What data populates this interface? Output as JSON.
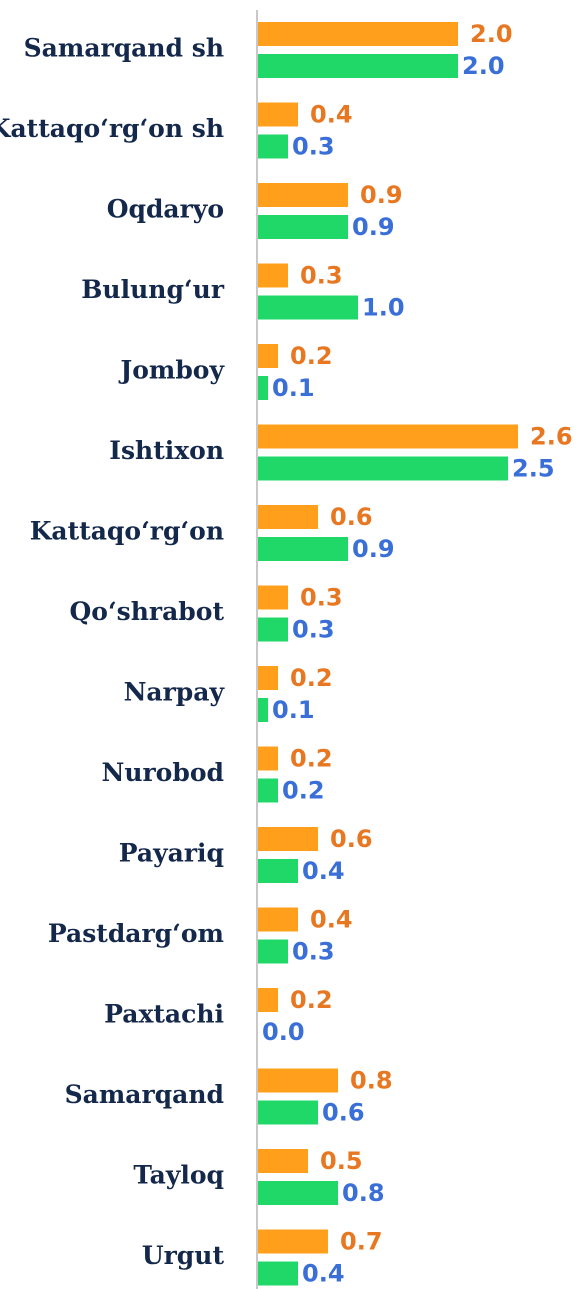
{
  "chart_data": {
    "type": "bar",
    "orientation": "horizontal",
    "categories": [
      "Samarqand sh",
      "Kattaqo‘rg‘on sh",
      "Oqdaryo",
      "Bulung‘ur",
      "Jomboy",
      "Ishtixon",
      "Kattaqo‘rg‘on",
      "Qo‘shrabot",
      "Narpay",
      "Nurobod",
      "Payariq",
      "Pastdarg‘om",
      "Paxtachi",
      "Samarqand",
      "Tayloq",
      "Urgut"
    ],
    "series": [
      {
        "color": "#ff9f1c",
        "label_color": "#e87722",
        "values": [
          2.0,
          0.4,
          0.9,
          0.3,
          0.2,
          2.6,
          0.6,
          0.3,
          0.2,
          0.2,
          0.6,
          0.4,
          0.2,
          0.8,
          0.5,
          0.7
        ],
        "value_labels": [
          "2.0",
          "0.4",
          "0.9",
          "0.3",
          "0.2",
          "2.6",
          "0.6",
          "0.3",
          "0.2",
          "0.2",
          "0.6",
          "0.4",
          "0.2",
          "0.8",
          "0.5",
          "0.7"
        ]
      },
      {
        "color": "#1fd868",
        "label_color": "#3a6fd8",
        "values": [
          2.0,
          0.3,
          0.9,
          1.0,
          0.1,
          2.5,
          0.9,
          0.3,
          0.1,
          0.2,
          0.4,
          0.3,
          0.0,
          0.6,
          0.8,
          0.4
        ],
        "value_labels": [
          "2.0",
          "0.3",
          "0.9",
          "1.0",
          "0.1",
          "2.5",
          "0.9",
          "0.3",
          "0.1",
          "0.2",
          "0.4",
          "0.3",
          "0.0",
          "0.6",
          "0.8",
          "0.4"
        ]
      }
    ],
    "xlim": [
      0,
      3
    ]
  }
}
